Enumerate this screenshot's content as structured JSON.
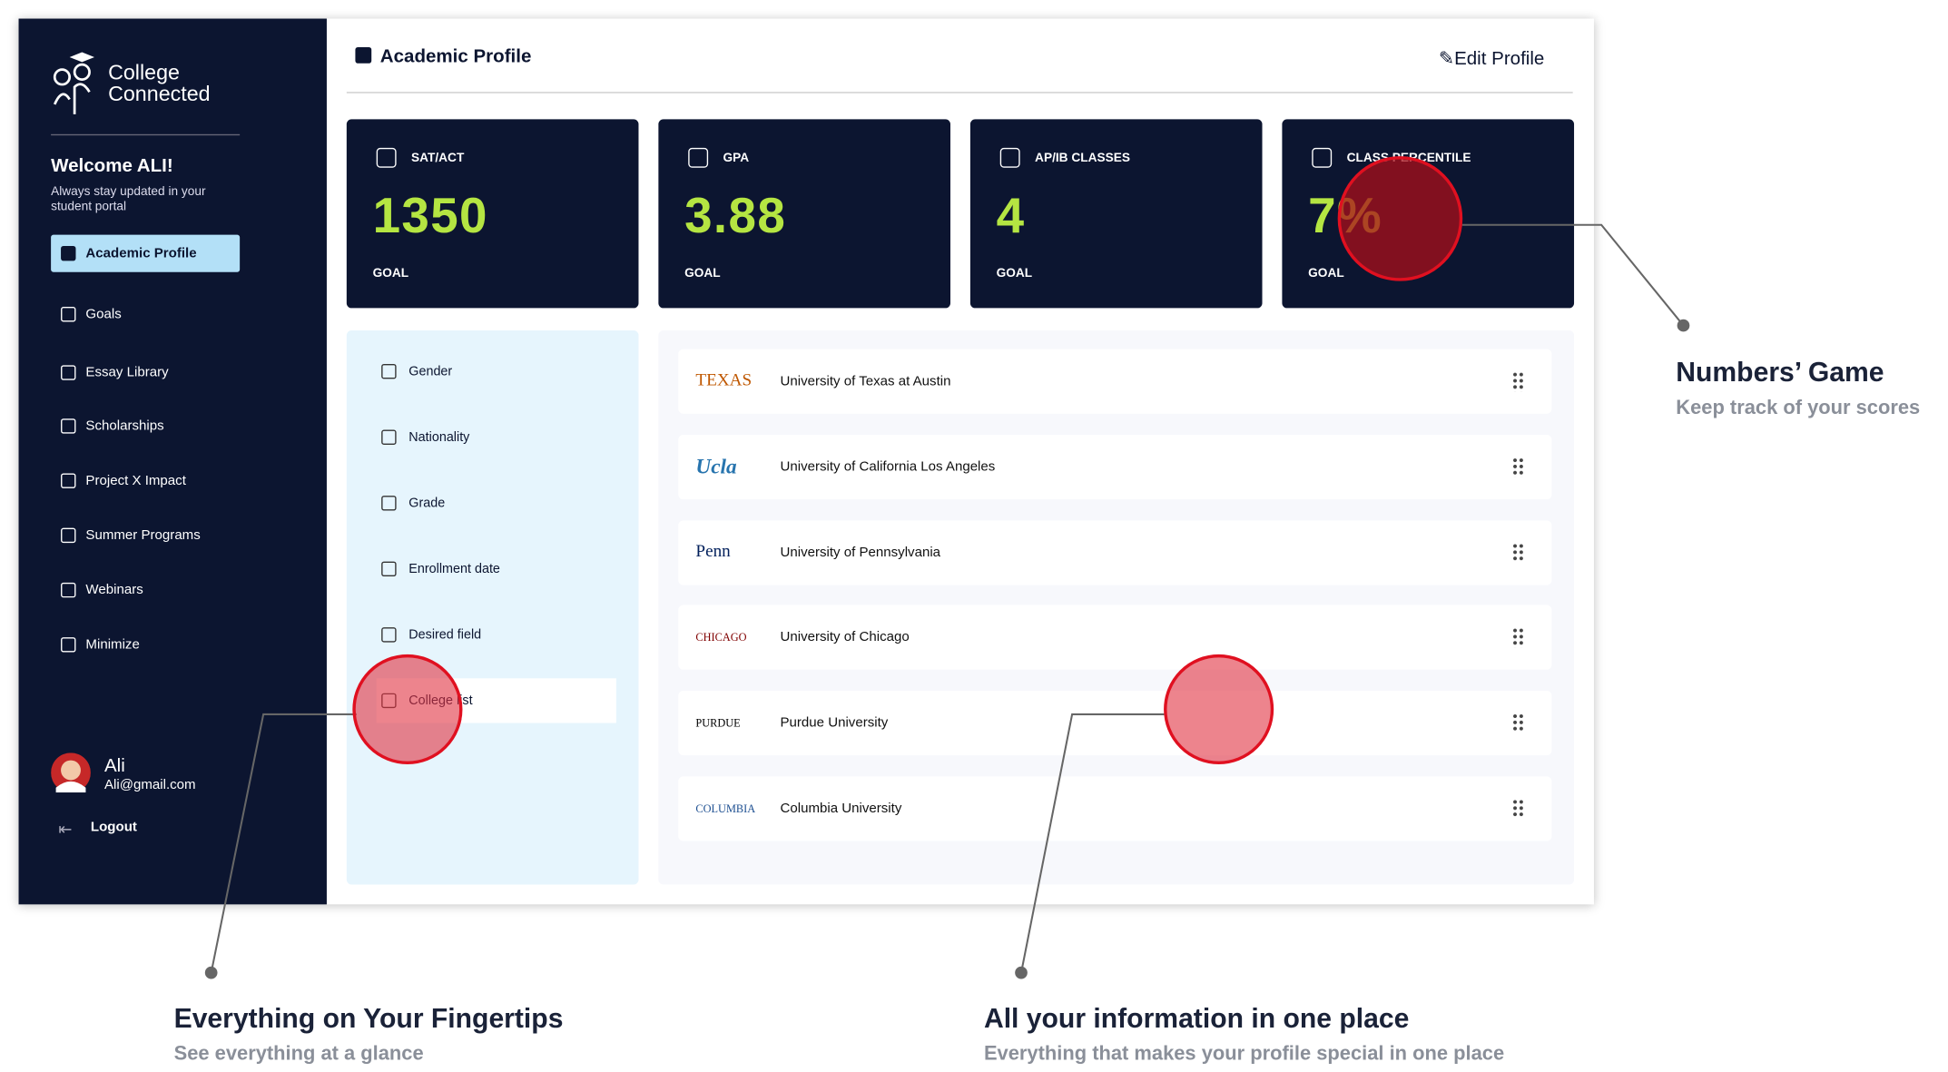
{
  "sidebar": {
    "brand": [
      "College",
      "Connected"
    ],
    "welcome": "Welcome ALI!",
    "subtitle": "Always stay updated in your student portal",
    "nav": [
      "Academic Profile",
      "Goals",
      "Essay Library",
      "Scholarships",
      "Project X Impact",
      "Summer Programs",
      "Webinars",
      "Minimize"
    ],
    "user": {
      "name": "Ali",
      "email": "Ali@gmail.com"
    },
    "logout": "Logout"
  },
  "header": {
    "title": "Academic Profile",
    "edit": "Edit Profile"
  },
  "stats": [
    {
      "label": "SAT/ACT",
      "value": "1350",
      "goal": "GOAL"
    },
    {
      "label": "GPA",
      "value": "3.88",
      "goal": "GOAL"
    },
    {
      "label": "AP/IB CLASSES",
      "value": "4",
      "goal": "GOAL"
    },
    {
      "label": "CLASS PERCENTILE",
      "value": "7%",
      "goal": "GOAL"
    }
  ],
  "fields": [
    "Gender",
    "Nationality",
    "Grade",
    "Enrollment date",
    "Desired field",
    "College list"
  ],
  "colleges": [
    {
      "logo": "TEXAS",
      "name": "University of Texas at Austin"
    },
    {
      "logo": "Ucla",
      "name": "University of California Los Angeles"
    },
    {
      "logo": "Penn",
      "name": "University of Pennsylvania"
    },
    {
      "logo": "CHICAGO",
      "name": "University of Chicago"
    },
    {
      "logo": "PURDUE",
      "name": "Purdue University"
    },
    {
      "logo": "COLUMBIA",
      "name": "Columbia University"
    }
  ],
  "annotations": [
    {
      "title": "Numbers’ Game",
      "subtitle": "Keep track of your scores"
    },
    {
      "title": "Everything on Your Fingertips",
      "subtitle": "See everything at a glance"
    },
    {
      "title": "All your information in one place",
      "subtitle": "Everything that makes your profile special in one place"
    }
  ]
}
